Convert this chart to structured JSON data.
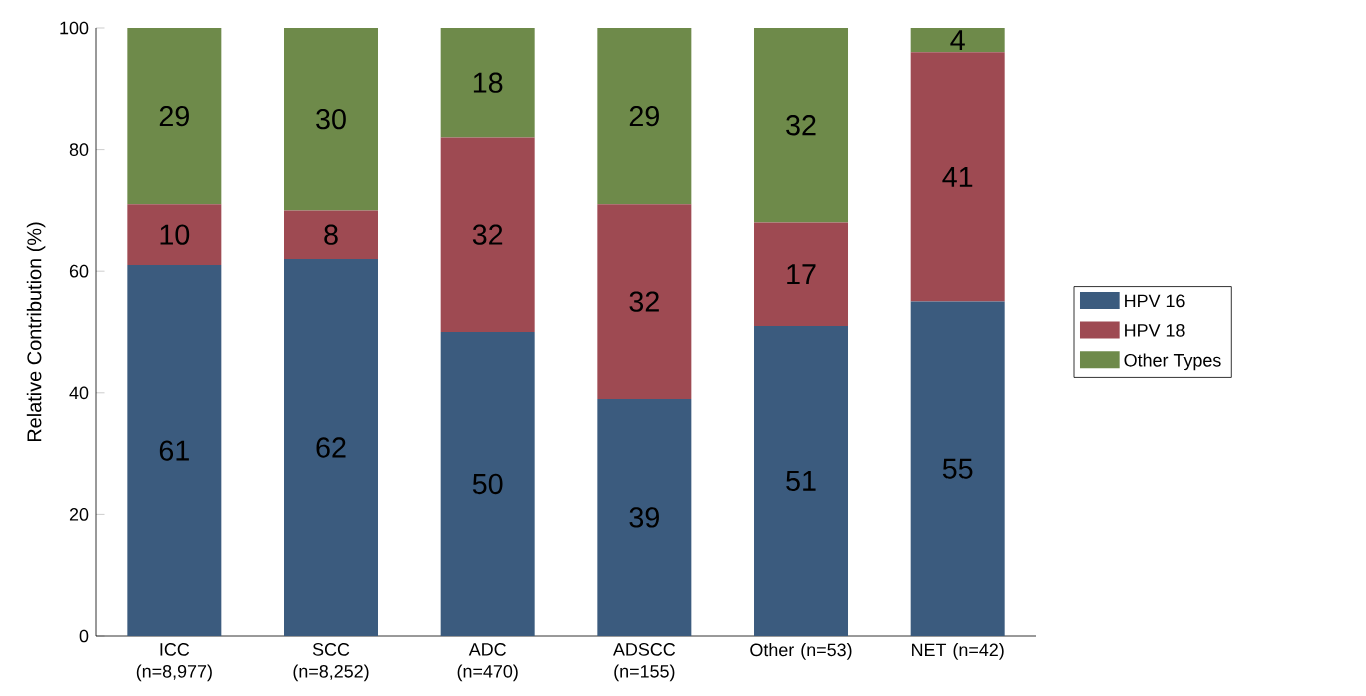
{
  "chart_data": {
    "type": "bar",
    "stacked": true,
    "data_labels": true,
    "ylabel": "Relative Contribution (%)",
    "categories": [
      "ICC (n=8,977)",
      "SCC (n=8,252)",
      "ADC (n=470)",
      "ADSCC (n=155)",
      "Other (n=53)",
      "NET (n=42)"
    ],
    "series": [
      {
        "name": "HPV 16",
        "color": "#3b5b7e",
        "values": [
          61,
          62,
          50,
          39,
          51,
          55
        ]
      },
      {
        "name": "HPV 18",
        "color": "#9e4a52",
        "values": [
          10,
          8,
          32,
          32,
          17,
          41
        ]
      },
      {
        "name": "Other Types",
        "color": "#6e8a4a",
        "values": [
          29,
          30,
          18,
          29,
          32,
          4
        ]
      }
    ],
    "ylim": [
      0,
      100
    ],
    "yticks": [
      0,
      20,
      40,
      60,
      80,
      100
    ],
    "grid": false,
    "legend": "right"
  }
}
